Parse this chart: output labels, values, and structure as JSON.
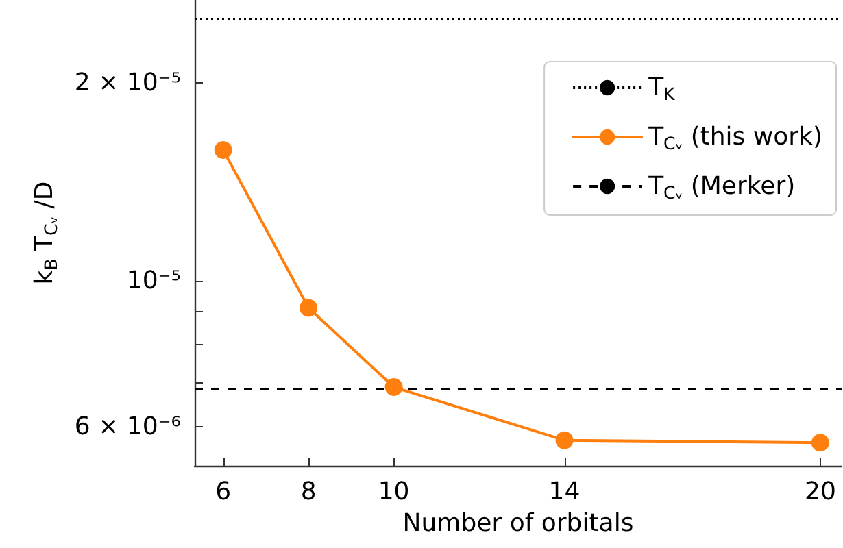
{
  "chart_data": {
    "type": "line",
    "xlabel": "Number of orbitals",
    "ylabel": "k$_{B}$ T$_{Cᵥ}$ /D",
    "x": [
      6,
      8,
      10,
      14,
      20
    ],
    "series": [
      {
        "name": "T$_{Cᵥ}$ (this work)",
        "color": "#ff7f0e",
        "values": [
          1.58e-05,
          9.1e-06,
          6.9e-06,
          5.73e-06,
          5.68e-06
        ]
      }
    ],
    "ref_lines": [
      {
        "axis": "y",
        "value": 2.5e-05,
        "label": "T$_{K}$",
        "color": "#000000",
        "line_style": "dotted"
      },
      {
        "axis": "y",
        "value": 6.85e-06,
        "label": "T$_{Cᵥ}$ (Merker)",
        "color": "#000000",
        "line_style": "dashed"
      }
    ],
    "xlim": [
      5.33,
      20.5
    ],
    "xticks": [
      6,
      8,
      10,
      14,
      20
    ],
    "ylim": [
      5.24e-06,
      2.67e-05
    ],
    "yticks": [
      {
        "value": 6e-06,
        "label": "6 × 10⁻⁶"
      },
      {
        "value": 7e-06,
        "label": null
      },
      {
        "value": 8e-06,
        "label": null
      },
      {
        "value": 9e-06,
        "label": null
      },
      {
        "value": 1e-05,
        "label": "10⁻⁵"
      },
      {
        "value": 2e-05,
        "label": "2 × 10⁻⁵"
      }
    ],
    "log": "y",
    "grid": false,
    "legend": "top right",
    "marker": "circle",
    "line_style": "solid"
  }
}
